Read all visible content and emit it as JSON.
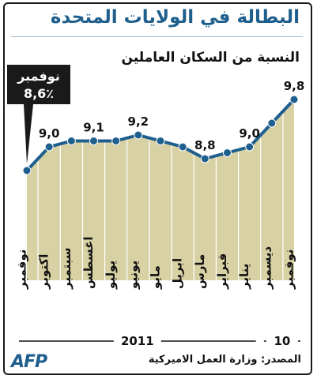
{
  "header": {
    "title": "البطالة في الولايات المتحدة",
    "subtitle": "النسبة من السكان العاملين"
  },
  "footer": {
    "logo": "AFP",
    "source": "المصدر: وزارة العمل الاميركية"
  },
  "colors": {
    "area_fill": "#d8d1a4",
    "line": "#1f5f8e",
    "title": "#1f5f8e",
    "callout_bg": "#1a1a1a"
  },
  "chart_data": {
    "type": "area",
    "title": "البطالة في الولايات المتحدة",
    "subtitle": "النسبة من السكان العاملين",
    "categories": [
      "نوفمبر",
      "اكتوبر",
      "سبتمبر",
      "اغسطس",
      "يوليو",
      "يونيو",
      "مايو",
      "ابريل",
      "مارس",
      "فبراير",
      "يناير",
      "ديسمبر",
      "نوفمبر"
    ],
    "values": [
      8.6,
      9.0,
      9.1,
      9.1,
      9.1,
      9.2,
      9.1,
      9.0,
      8.8,
      8.9,
      9.0,
      9.4,
      9.8
    ],
    "value_labels": [
      {
        "index": 1,
        "text": "9,0"
      },
      {
        "index": 3,
        "text": "9,1"
      },
      {
        "index": 5,
        "text": "9,2"
      },
      {
        "index": 8,
        "text": "8,8"
      },
      {
        "index": 10,
        "text": "9,0"
      },
      {
        "index": 12,
        "text": "9,8"
      }
    ],
    "callout": {
      "index": 0,
      "line1": "نوفمبر",
      "line2": "8,6٪"
    },
    "year_labels": [
      {
        "text": "2011",
        "from_index": 0,
        "to_index": 10
      },
      {
        "text": "10",
        "from_index": 11,
        "to_index": 12
      }
    ],
    "ylim": [
      7.6,
      10.0
    ],
    "grid": false
  }
}
